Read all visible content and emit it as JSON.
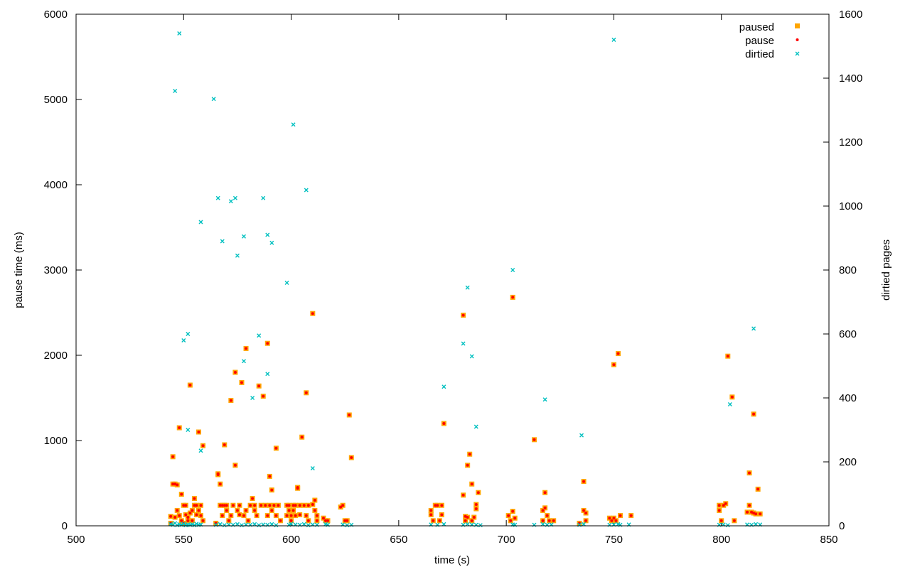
{
  "chart_data": {
    "type": "scatter",
    "xlabel": "time (s)",
    "ylabel": "pause time (ms)",
    "y2label": "dirtied pages",
    "xlim": [
      500,
      850
    ],
    "ylim": [
      0,
      6000
    ],
    "y2lim": [
      0,
      1600
    ],
    "xticks": [
      "500",
      "550",
      "600",
      "650",
      "700",
      "750",
      "800",
      "850"
    ],
    "yticks": [
      "0",
      "1000",
      "2000",
      "3000",
      "4000",
      "5000",
      "6000"
    ],
    "y2ticks": [
      "0",
      "200",
      "400",
      "600",
      "800",
      "1000",
      "1200",
      "1400",
      "1600"
    ],
    "legend_position": "top-right",
    "series": [
      {
        "name": "paused",
        "axis": "y",
        "marker": "square",
        "color": "#ffa500",
        "points": [
          [
            544,
            110
          ],
          [
            544,
            30
          ],
          [
            545,
            490
          ],
          [
            545,
            810
          ],
          [
            546,
            490
          ],
          [
            546,
            100
          ],
          [
            547,
            480
          ],
          [
            547,
            180
          ],
          [
            548,
            120
          ],
          [
            548,
            1150
          ],
          [
            549,
            370
          ],
          [
            549,
            60
          ],
          [
            550,
            30
          ],
          [
            550,
            240
          ],
          [
            551,
            130
          ],
          [
            551,
            240
          ],
          [
            552,
            60
          ],
          [
            552,
            100
          ],
          [
            553,
            1650
          ],
          [
            553,
            150
          ],
          [
            554,
            180
          ],
          [
            554,
            60
          ],
          [
            555,
            240
          ],
          [
            555,
            320
          ],
          [
            556,
            130
          ],
          [
            556,
            240
          ],
          [
            557,
            1100
          ],
          [
            557,
            180
          ],
          [
            558,
            240
          ],
          [
            558,
            120
          ],
          [
            559,
            940
          ],
          [
            559,
            60
          ],
          [
            565,
            30
          ],
          [
            566,
            600
          ],
          [
            566,
            610
          ],
          [
            567,
            490
          ],
          [
            567,
            240
          ],
          [
            568,
            240
          ],
          [
            568,
            120
          ],
          [
            569,
            950
          ],
          [
            569,
            240
          ],
          [
            570,
            180
          ],
          [
            570,
            240
          ],
          [
            571,
            60
          ],
          [
            572,
            1470
          ],
          [
            572,
            120
          ],
          [
            573,
            240
          ],
          [
            574,
            1800
          ],
          [
            574,
            710
          ],
          [
            575,
            180
          ],
          [
            576,
            240
          ],
          [
            576,
            130
          ],
          [
            577,
            1680
          ],
          [
            578,
            120
          ],
          [
            579,
            2080
          ],
          [
            579,
            180
          ],
          [
            580,
            60
          ],
          [
            581,
            240
          ],
          [
            582,
            320
          ],
          [
            583,
            240
          ],
          [
            583,
            180
          ],
          [
            584,
            120
          ],
          [
            585,
            1640
          ],
          [
            586,
            240
          ],
          [
            587,
            1520
          ],
          [
            588,
            240
          ],
          [
            589,
            2140
          ],
          [
            589,
            120
          ],
          [
            590,
            580
          ],
          [
            590,
            240
          ],
          [
            591,
            420
          ],
          [
            591,
            180
          ],
          [
            592,
            240
          ],
          [
            593,
            910
          ],
          [
            593,
            120
          ],
          [
            594,
            240
          ],
          [
            595,
            60
          ],
          [
            598,
            240
          ],
          [
            598,
            120
          ],
          [
            599,
            240
          ],
          [
            599,
            180
          ],
          [
            600,
            120
          ],
          [
            600,
            60
          ],
          [
            601,
            240
          ],
          [
            601,
            180
          ],
          [
            602,
            240
          ],
          [
            602,
            120
          ],
          [
            603,
            440
          ],
          [
            603,
            450
          ],
          [
            604,
            240
          ],
          [
            604,
            130
          ],
          [
            605,
            1040
          ],
          [
            606,
            240
          ],
          [
            607,
            1560
          ],
          [
            607,
            120
          ],
          [
            608,
            240
          ],
          [
            608,
            60
          ],
          [
            610,
            2490
          ],
          [
            610,
            250
          ],
          [
            611,
            300
          ],
          [
            611,
            180
          ],
          [
            612,
            120
          ],
          [
            612,
            60
          ],
          [
            615,
            90
          ],
          [
            616,
            60
          ],
          [
            617,
            60
          ],
          [
            623,
            220
          ],
          [
            624,
            240
          ],
          [
            625,
            60
          ],
          [
            626,
            60
          ],
          [
            627,
            1300
          ],
          [
            628,
            800
          ],
          [
            665,
            180
          ],
          [
            665,
            130
          ],
          [
            666,
            60
          ],
          [
            667,
            240
          ],
          [
            668,
            240
          ],
          [
            669,
            60
          ],
          [
            670,
            240
          ],
          [
            670,
            130
          ],
          [
            671,
            1200
          ],
          [
            680,
            2470
          ],
          [
            680,
            360
          ],
          [
            681,
            60
          ],
          [
            681,
            110
          ],
          [
            682,
            710
          ],
          [
            682,
            100
          ],
          [
            683,
            840
          ],
          [
            684,
            490
          ],
          [
            684,
            60
          ],
          [
            685,
            100
          ],
          [
            686,
            200
          ],
          [
            686,
            250
          ],
          [
            687,
            390
          ],
          [
            701,
            120
          ],
          [
            702,
            60
          ],
          [
            703,
            2680
          ],
          [
            703,
            170
          ],
          [
            704,
            90
          ],
          [
            713,
            1010
          ],
          [
            717,
            60
          ],
          [
            717,
            180
          ],
          [
            718,
            390
          ],
          [
            718,
            210
          ],
          [
            719,
            120
          ],
          [
            720,
            60
          ],
          [
            722,
            60
          ],
          [
            734,
            30
          ],
          [
            736,
            520
          ],
          [
            736,
            180
          ],
          [
            737,
            150
          ],
          [
            737,
            60
          ],
          [
            748,
            90
          ],
          [
            749,
            60
          ],
          [
            750,
            1890
          ],
          [
            750,
            90
          ],
          [
            751,
            60
          ],
          [
            752,
            2020
          ],
          [
            753,
            120
          ],
          [
            758,
            120
          ],
          [
            799,
            240
          ],
          [
            799,
            180
          ],
          [
            800,
            60
          ],
          [
            801,
            240
          ],
          [
            802,
            260
          ],
          [
            803,
            1990
          ],
          [
            805,
            1510
          ],
          [
            806,
            60
          ],
          [
            812,
            160
          ],
          [
            813,
            620
          ],
          [
            813,
            240
          ],
          [
            814,
            160
          ],
          [
            815,
            1310
          ],
          [
            815,
            150
          ],
          [
            816,
            140
          ],
          [
            817,
            430
          ],
          [
            818,
            140
          ]
        ]
      },
      {
        "name": "pause",
        "axis": "y",
        "marker": "dot",
        "color": "#ff0000",
        "same_points_as": "paused"
      },
      {
        "name": "dirtied",
        "axis": "y2",
        "marker": "x",
        "color": "#00c0c0",
        "points": [
          [
            546,
            1360
          ],
          [
            548,
            1540
          ],
          [
            550,
            580
          ],
          [
            552,
            300
          ],
          [
            552,
            600
          ],
          [
            558,
            235
          ],
          [
            558,
            950
          ],
          [
            566,
            1025
          ],
          [
            564,
            1335
          ],
          [
            568,
            890
          ],
          [
            572,
            1015
          ],
          [
            574,
            1025
          ],
          [
            575,
            845
          ],
          [
            578,
            515
          ],
          [
            578,
            905
          ],
          [
            582,
            400
          ],
          [
            585,
            595
          ],
          [
            587,
            1025
          ],
          [
            589,
            475
          ],
          [
            589,
            910
          ],
          [
            591,
            885
          ],
          [
            598,
            760
          ],
          [
            601,
            1255
          ],
          [
            607,
            1050
          ],
          [
            610,
            180
          ],
          [
            671,
            435
          ],
          [
            680,
            570
          ],
          [
            682,
            745
          ],
          [
            684,
            530
          ],
          [
            686,
            310
          ],
          [
            703,
            800
          ],
          [
            718,
            395
          ],
          [
            735,
            283
          ],
          [
            750,
            1520
          ],
          [
            804,
            380
          ],
          [
            815,
            617
          ],
          [
            544,
            5
          ],
          [
            545,
            3
          ],
          [
            546,
            8
          ],
          [
            547,
            2
          ],
          [
            548,
            5
          ],
          [
            549,
            3
          ],
          [
            550,
            6
          ],
          [
            551,
            2
          ],
          [
            552,
            4
          ],
          [
            553,
            3
          ],
          [
            554,
            5
          ],
          [
            555,
            2
          ],
          [
            556,
            6
          ],
          [
            557,
            3
          ],
          [
            558,
            4
          ],
          [
            565,
            3
          ],
          [
            567,
            5
          ],
          [
            569,
            2
          ],
          [
            571,
            4
          ],
          [
            573,
            3
          ],
          [
            575,
            5
          ],
          [
            577,
            2
          ],
          [
            579,
            4
          ],
          [
            581,
            3
          ],
          [
            583,
            5
          ],
          [
            585,
            2
          ],
          [
            587,
            4
          ],
          [
            589,
            3
          ],
          [
            591,
            5
          ],
          [
            593,
            2
          ],
          [
            599,
            3
          ],
          [
            600,
            6
          ],
          [
            602,
            4
          ],
          [
            604,
            3
          ],
          [
            606,
            5
          ],
          [
            608,
            2
          ],
          [
            610,
            4
          ],
          [
            612,
            3
          ],
          [
            616,
            5
          ],
          [
            617,
            3
          ],
          [
            624,
            4
          ],
          [
            626,
            2
          ],
          [
            628,
            3
          ],
          [
            665,
            4
          ],
          [
            668,
            3
          ],
          [
            671,
            5
          ],
          [
            680,
            3
          ],
          [
            682,
            5
          ],
          [
            684,
            4
          ],
          [
            686,
            3
          ],
          [
            688,
            2
          ],
          [
            703,
            4
          ],
          [
            704,
            3
          ],
          [
            713,
            3
          ],
          [
            717,
            5
          ],
          [
            719,
            3
          ],
          [
            721,
            4
          ],
          [
            734,
            3
          ],
          [
            736,
            5
          ],
          [
            748,
            3
          ],
          [
            750,
            4
          ],
          [
            752,
            5
          ],
          [
            753,
            3
          ],
          [
            757,
            4
          ],
          [
            799,
            3
          ],
          [
            801,
            4
          ],
          [
            803,
            2
          ],
          [
            812,
            4
          ],
          [
            814,
            3
          ],
          [
            816,
            5
          ],
          [
            818,
            4
          ]
        ]
      }
    ]
  }
}
